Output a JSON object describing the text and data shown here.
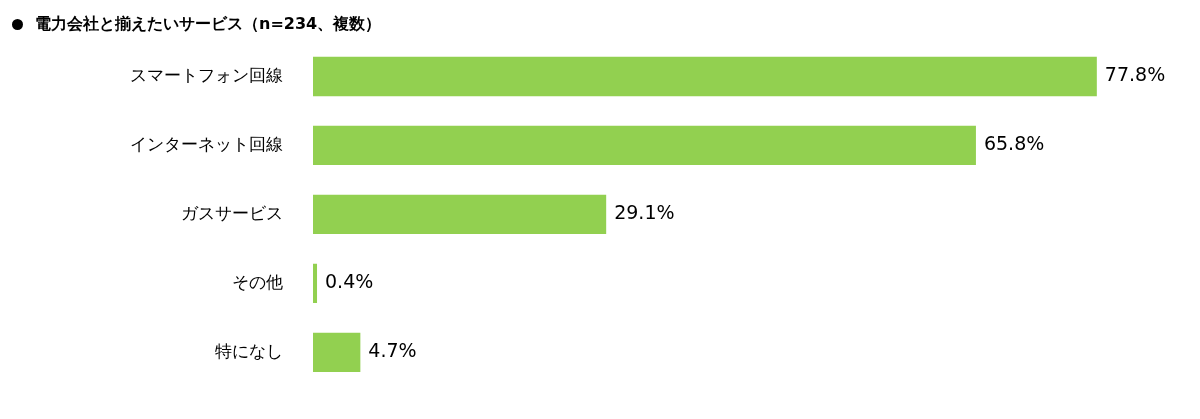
{
  "chart_data": {
    "type": "bar",
    "orientation": "horizontal",
    "title": "電力会社と揃えたいサービス（n=234、複数）",
    "categories": [
      "スマートフォン回線",
      "インターネット回線",
      "ガスサービス",
      "その他",
      "特になし"
    ],
    "values": [
      77.8,
      65.8,
      29.1,
      0.4,
      4.7
    ],
    "value_labels": [
      "77.8%",
      "65.8%",
      "29.1%",
      "0.4%",
      "4.7%"
    ],
    "color": "#92d050"
  }
}
